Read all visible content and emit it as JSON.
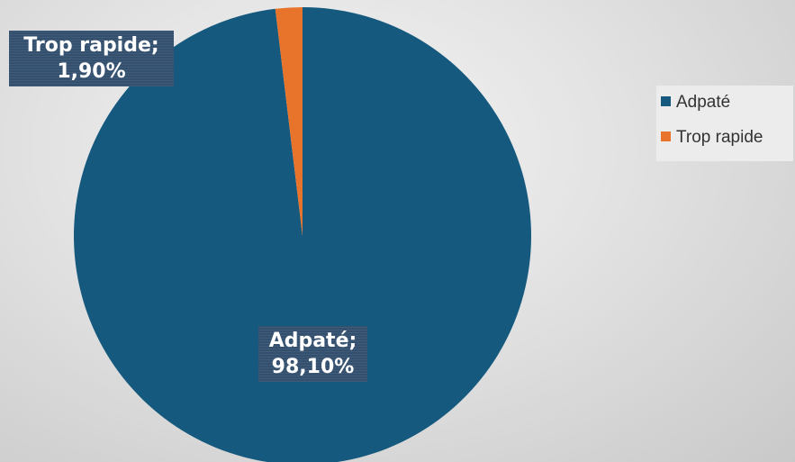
{
  "chart_data": {
    "type": "pie",
    "categories": [
      "Adpaté",
      "Trop rapide"
    ],
    "values": [
      98.1,
      1.9
    ],
    "colors": [
      "#15597e",
      "#e8732b"
    ],
    "data_labels": [
      {
        "name": "Adpaté;",
        "value": "98,10%"
      },
      {
        "name": "Trop rapide;",
        "value": "1,90%"
      }
    ],
    "legend_position": "right"
  },
  "legend": {
    "items": [
      {
        "label": "Adpaté",
        "color": "#15597e"
      },
      {
        "label": "Trop rapide",
        "color": "#e8732b"
      }
    ]
  }
}
